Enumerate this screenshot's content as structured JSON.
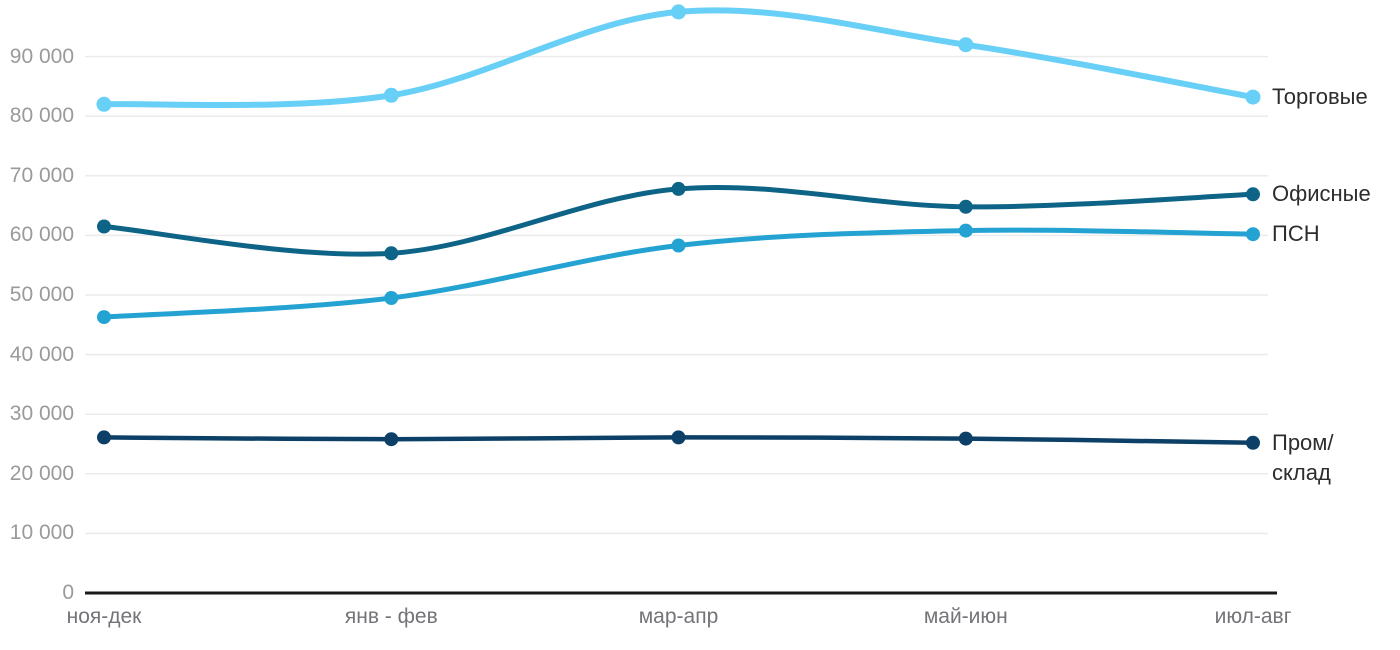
{
  "chart_data": {
    "type": "line",
    "title": "",
    "xlabel": "",
    "ylabel": "",
    "ylim": [
      0,
      100000
    ],
    "grid": "horizontal",
    "legend_position": "right-inline",
    "categories": [
      "ноя-дек",
      "янв - фев",
      "мар-апр",
      "май-июн",
      "июл-авг"
    ],
    "series": [
      {
        "name": "Торговые",
        "legend": "Торговые",
        "color": "#68cff7",
        "line_width": 6,
        "point_radius": 7.5,
        "values": [
          82000,
          83500,
          97500,
          92000,
          83200
        ]
      },
      {
        "name": "Офисные",
        "legend": "Офисные",
        "color": "#0e6486",
        "line_width": 5,
        "point_radius": 7,
        "values": [
          61500,
          57000,
          67800,
          64800,
          66900
        ]
      },
      {
        "name": "ПСН",
        "legend": "ПСН",
        "color": "#24a3d2",
        "line_width": 5,
        "point_radius": 7,
        "values": [
          46300,
          49500,
          58300,
          60800,
          60200
        ]
      },
      {
        "name": "Пром/склад",
        "legend": "Пром/\nсклад",
        "color": "#0d4067",
        "line_width": 4.5,
        "point_radius": 7,
        "values": [
          26100,
          25800,
          26100,
          25900,
          25200
        ]
      }
    ],
    "yticks": [
      {
        "value": 0,
        "label": "0"
      },
      {
        "value": 10000,
        "label": "10 000"
      },
      {
        "value": 20000,
        "label": "20 000"
      },
      {
        "value": 30000,
        "label": "30 000"
      },
      {
        "value": 40000,
        "label": "40 000"
      },
      {
        "value": 50000,
        "label": "50 000"
      },
      {
        "value": 60000,
        "label": "60 000"
      },
      {
        "value": 70000,
        "label": "70 000"
      },
      {
        "value": 80000,
        "label": "80 000"
      },
      {
        "value": 90000,
        "label": "90 000"
      }
    ],
    "colors": {
      "gridline": "#ebebeb",
      "zero_axis": "#1a1a1a",
      "ytick_text": "#9a9a9b",
      "xtick_text": "#737478",
      "legend_text": "#2d2d2d"
    }
  }
}
